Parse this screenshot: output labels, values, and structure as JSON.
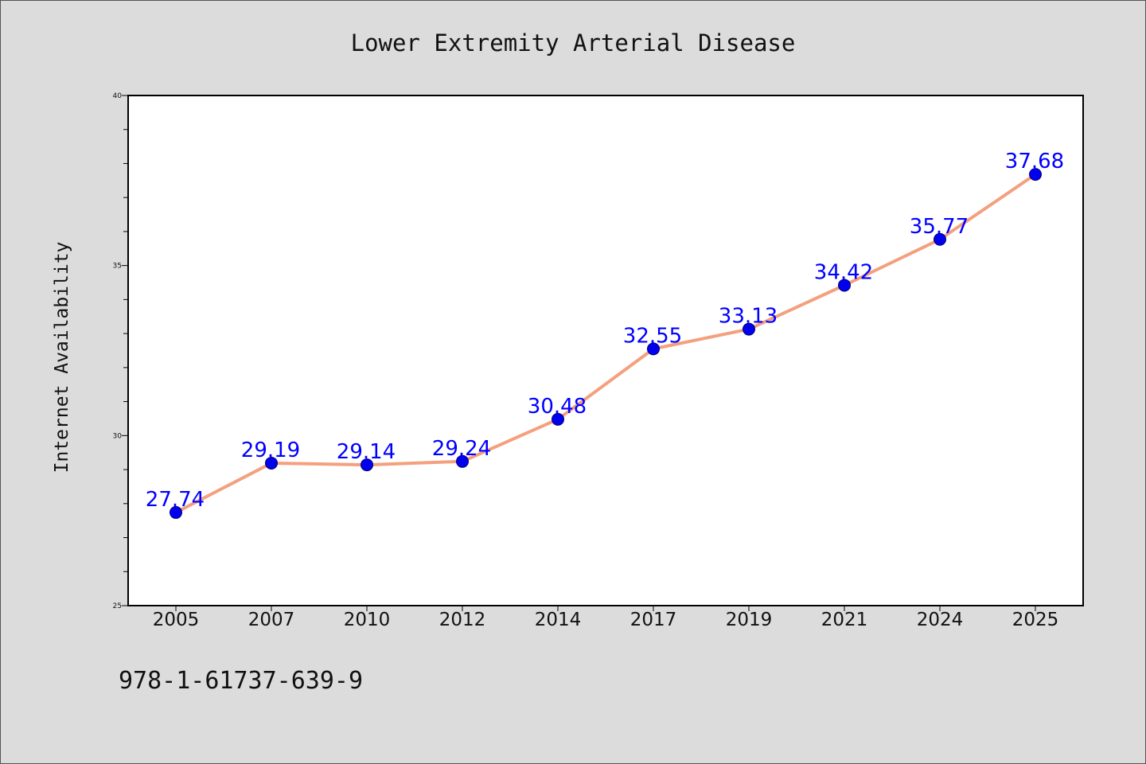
{
  "chart_data": {
    "type": "line",
    "title": "Lower Extremity Arterial Disease",
    "xlabel": "",
    "ylabel": "Internet Availability",
    "categories": [
      "2005",
      "2007",
      "2010",
      "2012",
      "2014",
      "2017",
      "2019",
      "2021",
      "2024",
      "2025"
    ],
    "series": [
      {
        "values": [
          27.74,
          29.19,
          29.14,
          29.24,
          30.48,
          32.55,
          33.13,
          34.42,
          35.77,
          37.68
        ]
      }
    ],
    "data_labels": [
      "27.74",
      "29.19",
      "29.14",
      "29.24",
      "30.48",
      "32.55",
      "33.13",
      "34.42",
      "35.77",
      "37.68"
    ],
    "ylim": [
      25,
      40
    ],
    "y_ticks": [
      25,
      30,
      35,
      40
    ],
    "y_tick_labels": [
      "25",
      "30",
      "35",
      "40"
    ],
    "grid": false,
    "legend": "none",
    "colors": {
      "line": "#f4a07e",
      "marker": "#0000ee",
      "label": "#0000ff",
      "plot_background": "#ffffff",
      "figure_background": "#dcdcdc"
    }
  },
  "footer": {
    "text": "978-1-61737-639-9"
  }
}
